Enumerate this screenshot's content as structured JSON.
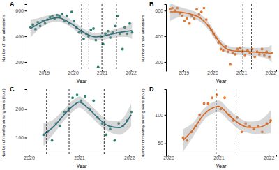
{
  "chart_data": [
    {
      "type": "scatter",
      "title": "A",
      "x_label": "Year",
      "y_label": "Number of new admissions",
      "grid": false,
      "xlim": [
        2018.4,
        2022.2
      ],
      "xticks": [
        2019,
        2020,
        2021,
        2022
      ],
      "ylim": [
        140,
        650
      ],
      "yticks": [
        200,
        400,
        600
      ],
      "vlines": [
        2020.3,
        2020.55,
        2021.0,
        2021.5
      ],
      "series": [
        {
          "type": "scatter",
          "color": "#2e8073",
          "x": [
            2018.54,
            2018.62,
            2018.71,
            2018.79,
            2018.87,
            2018.96,
            2019.04,
            2019.12,
            2019.21,
            2019.29,
            2019.37,
            2019.46,
            2019.54,
            2019.62,
            2019.71,
            2019.79,
            2019.87,
            2019.96,
            2020.04,
            2020.12,
            2020.21,
            2020.29,
            2020.37,
            2020.46,
            2020.54,
            2020.62,
            2020.71,
            2020.79,
            2020.87,
            2020.96,
            2021.04,
            2021.12,
            2021.21,
            2021.29,
            2021.37,
            2021.46,
            2021.54,
            2021.62,
            2021.71,
            2021.79,
            2021.87,
            2021.96,
            2022.04
          ],
          "values": [
            470,
            490,
            455,
            510,
            480,
            520,
            500,
            530,
            550,
            560,
            540,
            565,
            555,
            575,
            520,
            560,
            500,
            590,
            520,
            470,
            430,
            440,
            380,
            420,
            400,
            450,
            460,
            370,
            160,
            400,
            340,
            420,
            440,
            390,
            430,
            480,
            560,
            420,
            300,
            470,
            420,
            500,
            430
          ]
        },
        {
          "type": "line",
          "color": "#2e6f80",
          "x": [
            2018.54,
            2018.8,
            2019.0,
            2019.3,
            2019.5,
            2019.7,
            2020.0,
            2020.3,
            2020.6,
            2020.8,
            2021.0,
            2021.3,
            2021.6,
            2021.9,
            2022.04
          ],
          "values": [
            460,
            495,
            520,
            540,
            545,
            530,
            490,
            440,
            405,
            395,
            400,
            415,
            430,
            440,
            445
          ],
          "lower": [
            390,
            450,
            485,
            510,
            515,
            500,
            460,
            410,
            375,
            365,
            370,
            385,
            395,
            395,
            375
          ],
          "upper": [
            530,
            540,
            555,
            570,
            575,
            560,
            520,
            470,
            435,
            425,
            430,
            445,
            465,
            485,
            515
          ]
        }
      ]
    },
    {
      "type": "scatter",
      "title": "B",
      "x_label": "Year",
      "y_label": "Number of new admissions",
      "grid": false,
      "xlim": [
        2018.4,
        2022.2
      ],
      "xticks": [
        2019,
        2020,
        2021,
        2022
      ],
      "ylim": [
        140,
        650
      ],
      "yticks": [
        200,
        400,
        600
      ],
      "vlines": [
        2021.05,
        2021.35
      ],
      "series": [
        {
          "type": "scatter",
          "color": "#e8772e",
          "x": [
            2018.54,
            2018.62,
            2018.71,
            2018.79,
            2018.87,
            2018.96,
            2019.04,
            2019.12,
            2019.21,
            2019.29,
            2019.37,
            2019.46,
            2019.54,
            2019.62,
            2019.71,
            2019.79,
            2019.87,
            2019.96,
            2020.04,
            2020.12,
            2020.21,
            2020.29,
            2020.37,
            2020.46,
            2020.54,
            2020.62,
            2020.71,
            2020.79,
            2020.87,
            2020.96,
            2021.04,
            2021.12,
            2021.21,
            2021.29,
            2021.37,
            2021.46,
            2021.54,
            2021.62,
            2021.71,
            2021.79,
            2021.87,
            2021.96,
            2022.04
          ],
          "values": [
            610,
            620,
            600,
            620,
            580,
            560,
            520,
            540,
            500,
            560,
            540,
            610,
            570,
            590,
            620,
            530,
            480,
            450,
            420,
            390,
            350,
            300,
            290,
            320,
            280,
            180,
            270,
            260,
            300,
            310,
            280,
            250,
            290,
            270,
            300,
            240,
            280,
            260,
            300,
            250,
            280,
            240,
            270
          ]
        },
        {
          "type": "line",
          "color": "#d9651c",
          "x": [
            2018.54,
            2018.8,
            2019.0,
            2019.3,
            2019.6,
            2019.9,
            2020.1,
            2020.3,
            2020.5,
            2020.8,
            2021.0,
            2021.3,
            2021.6,
            2021.9,
            2022.04
          ],
          "values": [
            590,
            590,
            585,
            570,
            540,
            470,
            400,
            340,
            300,
            285,
            285,
            280,
            275,
            270,
            265
          ],
          "lower": [
            520,
            545,
            550,
            540,
            510,
            440,
            370,
            310,
            270,
            255,
            255,
            250,
            240,
            225,
            195
          ],
          "upper": [
            660,
            635,
            620,
            600,
            570,
            500,
            430,
            370,
            330,
            315,
            315,
            310,
            310,
            315,
            335
          ]
        }
      ]
    },
    {
      "type": "scatter",
      "title": "C",
      "x_label": "Year",
      "y_label": "Number of monthly nursing hours (hour)",
      "grid": false,
      "xlim": [
        2019.95,
        2022.15
      ],
      "xticks": [
        2020,
        2021,
        2022
      ],
      "ylim": [
        40,
        270
      ],
      "yticks": [
        100,
        200
      ],
      "vlines": [
        2020.35,
        2020.8,
        2021.5
      ],
      "series": [
        {
          "type": "scatter",
          "color": "#2e8073",
          "x": [
            2020.29,
            2020.37,
            2020.46,
            2020.54,
            2020.62,
            2020.71,
            2020.79,
            2020.87,
            2020.96,
            2021.04,
            2021.12,
            2021.21,
            2021.29,
            2021.37,
            2021.46,
            2021.54,
            2021.62,
            2021.71,
            2021.79,
            2021.87,
            2021.96,
            2022.04
          ],
          "values": [
            110,
            120,
            90,
            150,
            140,
            190,
            200,
            240,
            250,
            230,
            245,
            200,
            230,
            170,
            150,
            110,
            130,
            90,
            150,
            140,
            160,
            190
          ]
        },
        {
          "type": "line",
          "color": "#2e6f80",
          "x": [
            2020.29,
            2020.5,
            2020.7,
            2020.9,
            2021.0,
            2021.2,
            2021.4,
            2021.6,
            2021.8,
            2022.04
          ],
          "values": [
            110,
            140,
            180,
            215,
            225,
            200,
            165,
            140,
            135,
            180
          ],
          "lower": [
            70,
            115,
            160,
            195,
            205,
            180,
            145,
            120,
            110,
            140
          ],
          "upper": [
            150,
            165,
            200,
            235,
            245,
            220,
            185,
            160,
            160,
            220
          ]
        }
      ]
    },
    {
      "type": "scatter",
      "title": "D",
      "x_label": "Year",
      "y_label": "Number of monthly nursing hours (hour)",
      "grid": false,
      "xlim": [
        2019.95,
        2022.15
      ],
      "xticks": [
        2020,
        2021,
        2022
      ],
      "ylim": [
        30,
        145
      ],
      "yticks": [
        50,
        100
      ],
      "vlines": [
        2020.95,
        2021.35
      ],
      "series": [
        {
          "type": "scatter",
          "color": "#e8772e",
          "x": [
            2020.29,
            2020.37,
            2020.46,
            2020.54,
            2020.62,
            2020.71,
            2020.79,
            2020.87,
            2020.96,
            2021.04,
            2021.12,
            2021.21,
            2021.29,
            2021.37,
            2021.46,
            2021.54,
            2021.62,
            2021.71,
            2021.79,
            2021.87,
            2021.96,
            2022.04
          ],
          "values": [
            60,
            55,
            70,
            80,
            100,
            120,
            120,
            130,
            135,
            110,
            130,
            100,
            90,
            95,
            70,
            85,
            80,
            75,
            80,
            70,
            85,
            90
          ]
        },
        {
          "type": "line",
          "color": "#d9651c",
          "x": [
            2020.29,
            2020.5,
            2020.7,
            2020.9,
            2021.0,
            2021.2,
            2021.4,
            2021.6,
            2021.8,
            2022.04
          ],
          "values": [
            55,
            75,
            100,
            113,
            115,
            100,
            85,
            78,
            78,
            88
          ],
          "lower": [
            35,
            63,
            90,
            103,
            105,
            90,
            75,
            68,
            66,
            68
          ],
          "upper": [
            75,
            87,
            110,
            123,
            125,
            110,
            95,
            88,
            90,
            108
          ]
        }
      ]
    }
  ]
}
